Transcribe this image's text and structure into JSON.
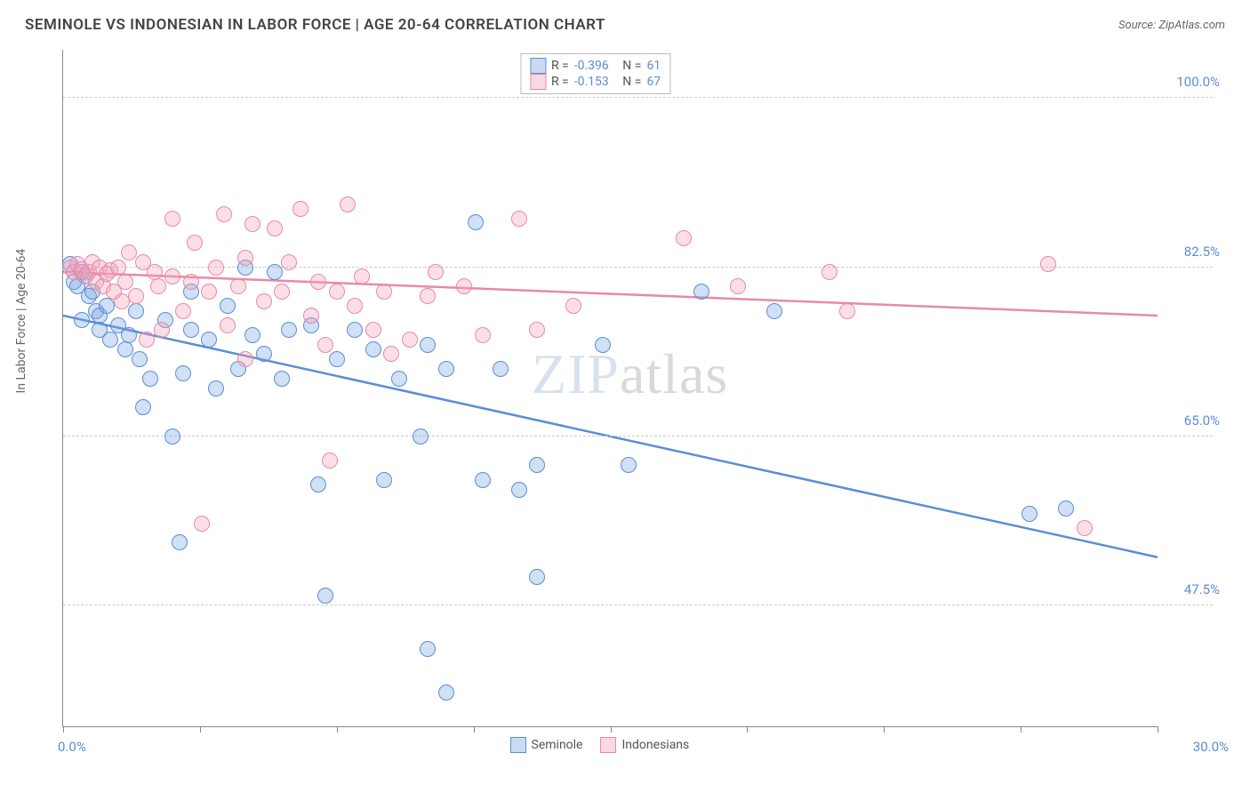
{
  "title": "SEMINOLE VS INDONESIAN IN LABOR FORCE | AGE 20-64 CORRELATION CHART",
  "source": "Source: ZipAtlas.com",
  "ylabel": "In Labor Force | Age 20-64",
  "watermark_a": "ZIP",
  "watermark_b": "atlas",
  "chart": {
    "type": "scatter",
    "background_color": "#ffffff",
    "grid_color": "#cccccc",
    "axis_color": "#888888",
    "xlim": [
      0,
      30
    ],
    "ylim": [
      35,
      105
    ],
    "xticks": [
      0,
      3.75,
      7.5,
      11.25,
      15,
      18.75,
      22.5,
      26.25,
      30
    ],
    "xtick_labels": {
      "left": "0.0%",
      "right": "30.0%"
    },
    "yticks": [
      47.5,
      65.0,
      82.5,
      100.0
    ],
    "ytick_labels": [
      "47.5%",
      "65.0%",
      "82.5%",
      "100.0%"
    ],
    "marker_size": 18,
    "series": [
      {
        "name": "Seminole",
        "color": "#5b8dd6",
        "fill": "rgba(120,165,225,0.35)",
        "stats": {
          "R": "-0.396",
          "N": "61"
        },
        "trend": {
          "x1": 0,
          "y1": 77.5,
          "x2": 30,
          "y2": 52.5,
          "width": 2.5
        },
        "points": [
          [
            0.2,
            82.8
          ],
          [
            0.3,
            81.0
          ],
          [
            0.4,
            80.5
          ],
          [
            0.5,
            82.0
          ],
          [
            0.6,
            81.5
          ],
          [
            0.7,
            79.5
          ],
          [
            0.8,
            80.0
          ],
          [
            0.9,
            78.0
          ],
          [
            1.0,
            77.5
          ],
          [
            1.0,
            76.0
          ],
          [
            1.2,
            78.5
          ],
          [
            1.3,
            75.0
          ],
          [
            0.5,
            77.0
          ],
          [
            1.5,
            76.5
          ],
          [
            1.7,
            74.0
          ],
          [
            1.8,
            75.5
          ],
          [
            2.0,
            78.0
          ],
          [
            2.1,
            73.0
          ],
          [
            2.2,
            68.0
          ],
          [
            2.4,
            71.0
          ],
          [
            2.8,
            77.0
          ],
          [
            3.0,
            65.0
          ],
          [
            3.2,
            54.0
          ],
          [
            3.3,
            71.5
          ],
          [
            3.5,
            76.0
          ],
          [
            3.5,
            80.0
          ],
          [
            4.0,
            75.0
          ],
          [
            4.2,
            70.0
          ],
          [
            4.5,
            78.5
          ],
          [
            4.8,
            72.0
          ],
          [
            5.0,
            82.5
          ],
          [
            5.2,
            75.5
          ],
          [
            5.5,
            73.5
          ],
          [
            5.8,
            82.0
          ],
          [
            6.0,
            71.0
          ],
          [
            6.2,
            76.0
          ],
          [
            6.8,
            76.5
          ],
          [
            7.0,
            60.0
          ],
          [
            7.2,
            48.5
          ],
          [
            7.5,
            73.0
          ],
          [
            8.0,
            76.0
          ],
          [
            8.5,
            74.0
          ],
          [
            8.8,
            60.5
          ],
          [
            9.2,
            71.0
          ],
          [
            9.8,
            65.0
          ],
          [
            10.0,
            74.5
          ],
          [
            10.0,
            43.0
          ],
          [
            10.5,
            72.0
          ],
          [
            10.5,
            38.5
          ],
          [
            11.3,
            87.2
          ],
          [
            11.5,
            60.5
          ],
          [
            12.0,
            72.0
          ],
          [
            12.5,
            59.5
          ],
          [
            13.0,
            62.0
          ],
          [
            13.0,
            50.5
          ],
          [
            14.8,
            74.5
          ],
          [
            15.5,
            62.0
          ],
          [
            17.5,
            80.0
          ],
          [
            19.5,
            78.0
          ],
          [
            26.5,
            57.0
          ],
          [
            27.5,
            57.5
          ]
        ]
      },
      {
        "name": "Indonesians",
        "color": "#e68aa8",
        "fill": "rgba(245,160,185,0.35)",
        "stats": {
          "R": "-0.153",
          "N": "67"
        },
        "trend": {
          "x1": 0,
          "y1": 82.0,
          "x2": 30,
          "y2": 77.5,
          "width": 2.5
        },
        "points": [
          [
            0.2,
            82.5
          ],
          [
            0.3,
            82.0
          ],
          [
            0.4,
            82.8
          ],
          [
            0.5,
            82.3
          ],
          [
            0.6,
            81.5
          ],
          [
            0.7,
            82.0
          ],
          [
            0.8,
            83.0
          ],
          [
            0.9,
            81.0
          ],
          [
            1.0,
            82.5
          ],
          [
            1.1,
            80.5
          ],
          [
            1.2,
            81.8
          ],
          [
            1.3,
            82.2
          ],
          [
            1.4,
            80.0
          ],
          [
            1.5,
            82.5
          ],
          [
            1.6,
            79.0
          ],
          [
            1.7,
            81.0
          ],
          [
            1.8,
            84.0
          ],
          [
            2.0,
            79.5
          ],
          [
            2.2,
            83.0
          ],
          [
            2.3,
            75.0
          ],
          [
            2.5,
            82.0
          ],
          [
            2.6,
            80.5
          ],
          [
            2.7,
            76.0
          ],
          [
            3.0,
            81.5
          ],
          [
            3.0,
            87.5
          ],
          [
            3.3,
            78.0
          ],
          [
            3.5,
            81.0
          ],
          [
            3.6,
            85.0
          ],
          [
            3.8,
            56.0
          ],
          [
            4.0,
            80.0
          ],
          [
            4.2,
            82.5
          ],
          [
            4.4,
            88.0
          ],
          [
            4.5,
            76.5
          ],
          [
            4.8,
            80.5
          ],
          [
            5.0,
            83.5
          ],
          [
            5.0,
            73.0
          ],
          [
            5.2,
            87.0
          ],
          [
            5.5,
            79.0
          ],
          [
            5.8,
            86.5
          ],
          [
            6.0,
            80.0
          ],
          [
            6.2,
            83.0
          ],
          [
            6.5,
            88.5
          ],
          [
            6.8,
            77.5
          ],
          [
            7.0,
            81.0
          ],
          [
            7.2,
            74.5
          ],
          [
            7.3,
            62.5
          ],
          [
            7.5,
            80.0
          ],
          [
            7.8,
            89.0
          ],
          [
            8.0,
            78.5
          ],
          [
            8.2,
            81.5
          ],
          [
            8.5,
            76.0
          ],
          [
            8.8,
            80.0
          ],
          [
            9.0,
            73.5
          ],
          [
            9.5,
            75.0
          ],
          [
            10.0,
            79.5
          ],
          [
            10.2,
            82.0
          ],
          [
            11.0,
            80.5
          ],
          [
            11.5,
            75.5
          ],
          [
            12.5,
            87.5
          ],
          [
            13.0,
            76.0
          ],
          [
            17.0,
            85.5
          ],
          [
            18.5,
            80.5
          ],
          [
            21.0,
            82.0
          ],
          [
            21.5,
            78.0
          ],
          [
            27.0,
            82.8
          ],
          [
            28.0,
            55.5
          ],
          [
            14.0,
            78.5
          ]
        ]
      }
    ],
    "statbox": {
      "label_R": "R =",
      "label_N": "N ="
    },
    "legend_bottom": [
      "Seminole",
      "Indonesians"
    ]
  }
}
